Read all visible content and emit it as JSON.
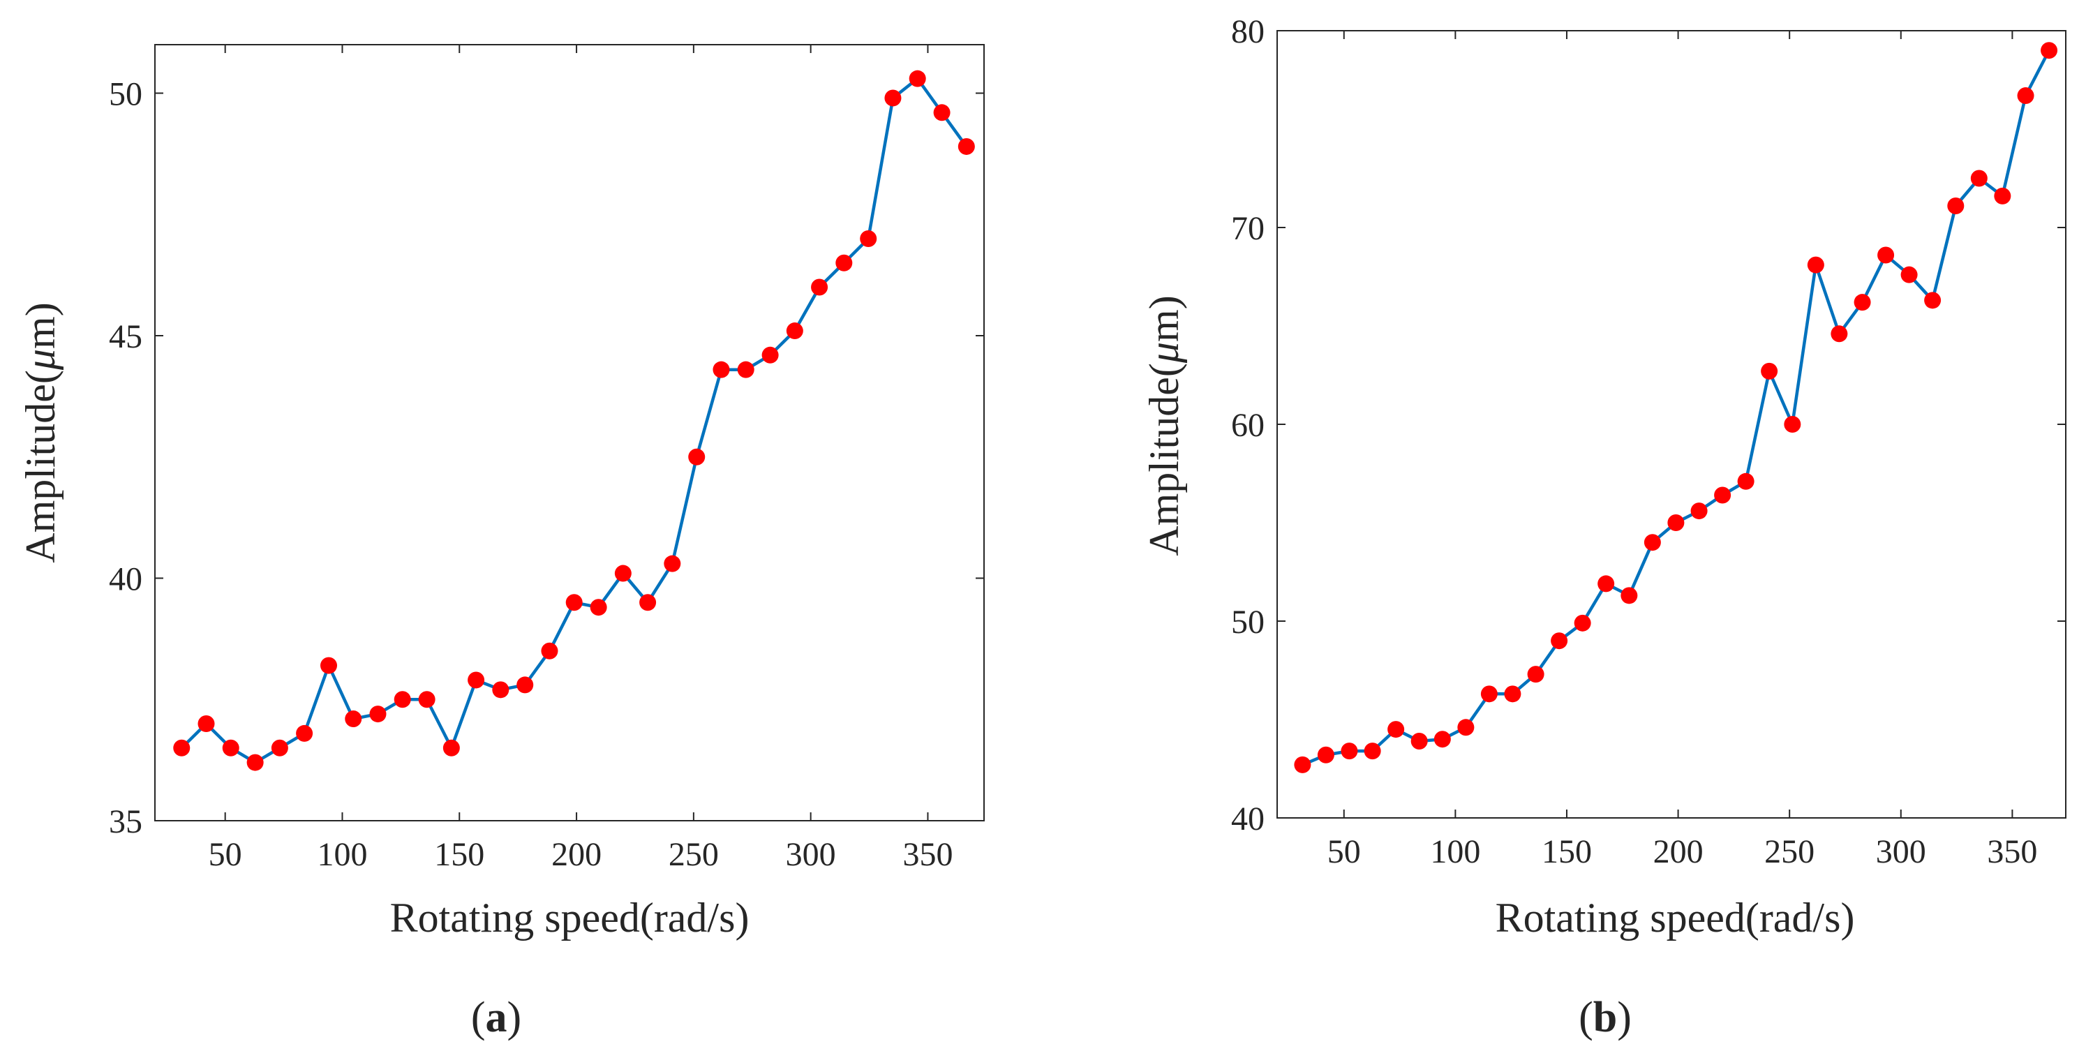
{
  "figure": {
    "panels": [
      {
        "id": "a",
        "label_open": "(",
        "label_letter": "a",
        "label_close": ")"
      },
      {
        "id": "b",
        "label_open": "(",
        "label_letter": "b",
        "label_close": ")"
      }
    ]
  },
  "chart_data": [
    {
      "type": "line",
      "panel": "a",
      "title": "",
      "xlabel": "Rotating speed(rad/s)",
      "ylabel_prefix": "Amplitude(",
      "ylabel_symbol": "μ",
      "ylabel_suffix": "m)",
      "xlim": [
        20,
        374
      ],
      "ylim": [
        35,
        51
      ],
      "xticks": [
        50,
        100,
        150,
        200,
        250,
        300,
        350
      ],
      "yticks": [
        35,
        40,
        45,
        50
      ],
      "grid": false,
      "line_color": "#0072BD",
      "marker_color": "#FF0000",
      "series": [
        {
          "name": "Amplitude",
          "x": [
            31.4,
            41.9,
            52.4,
            62.8,
            73.3,
            83.8,
            94.2,
            104.7,
            115.2,
            125.7,
            136.1,
            146.6,
            157.1,
            167.6,
            178.0,
            188.5,
            199.0,
            209.4,
            219.9,
            230.4,
            240.9,
            251.3,
            261.8,
            272.3,
            282.7,
            293.2,
            303.7,
            314.2,
            324.6,
            335.1,
            345.6,
            356.0,
            366.5
          ],
          "y": [
            36.5,
            37.0,
            36.5,
            36.2,
            36.5,
            36.8,
            38.2,
            37.1,
            37.2,
            37.5,
            37.5,
            36.5,
            37.9,
            37.7,
            37.8,
            38.5,
            39.5,
            39.4,
            40.1,
            39.5,
            40.3,
            42.5,
            44.3,
            44.3,
            44.6,
            45.1,
            46.0,
            46.5,
            47.0,
            49.9,
            50.3,
            49.6,
            48.9
          ]
        }
      ]
    },
    {
      "type": "line",
      "panel": "b",
      "title": "",
      "xlabel": "Rotating speed(rad/s)",
      "ylabel_prefix": "Amplitude(",
      "ylabel_symbol": "μ",
      "ylabel_suffix": "m)",
      "xlim": [
        20,
        374
      ],
      "ylim": [
        40,
        80
      ],
      "xticks": [
        50,
        100,
        150,
        200,
        250,
        300,
        350
      ],
      "yticks": [
        40,
        50,
        60,
        70,
        80
      ],
      "grid": false,
      "line_color": "#0072BD",
      "marker_color": "#FF0000",
      "series": [
        {
          "name": "Amplitude",
          "x": [
            31.4,
            41.9,
            52.4,
            62.8,
            73.3,
            83.8,
            94.2,
            104.7,
            115.2,
            125.7,
            136.1,
            146.6,
            157.1,
            167.6,
            178.0,
            188.5,
            199.0,
            209.4,
            219.9,
            230.4,
            240.9,
            251.3,
            261.8,
            272.3,
            282.7,
            293.2,
            303.7,
            314.2,
            324.6,
            335.1,
            345.6,
            356.0,
            366.5
          ],
          "y": [
            42.7,
            43.2,
            43.4,
            43.4,
            44.5,
            43.9,
            44.0,
            44.6,
            46.3,
            46.3,
            47.3,
            49.0,
            49.9,
            51.9,
            51.3,
            54.0,
            55.0,
            55.6,
            56.4,
            57.1,
            62.7,
            60.0,
            68.1,
            64.6,
            66.2,
            68.6,
            67.6,
            66.3,
            71.1,
            72.5,
            71.6,
            76.7,
            79.0
          ]
        }
      ]
    }
  ]
}
